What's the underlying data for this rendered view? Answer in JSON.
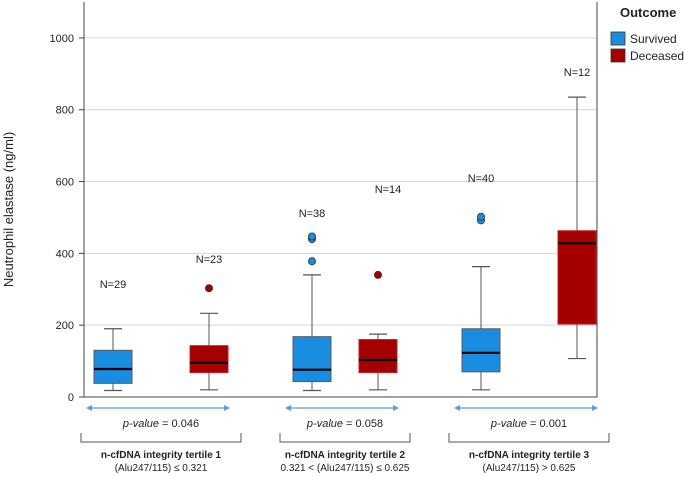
{
  "chart_data": {
    "type": "boxplot",
    "ylabel": "Neutrophil elastase (ng/ml)",
    "ylim": [
      0,
      1100
    ],
    "yticks": [
      0,
      200,
      400,
      600,
      800,
      1000
    ],
    "grid": true,
    "legend": {
      "title": "Outcome",
      "position": "top-right",
      "entries": [
        {
          "name": "Survived",
          "color": "#1a8de0"
        },
        {
          "name": "Deceased",
          "color": "#a50000"
        }
      ]
    },
    "groups": [
      {
        "label": "n-cfDNA integrity tertile 1",
        "sublabel": "(Alu247/115) ≤ 0.321",
        "p_prefix": "p-value",
        "p_suffix": " = 0.046",
        "boxes": [
          {
            "series": "Survived",
            "n_label": "N=29",
            "min": 18,
            "q1": 38,
            "median": 78,
            "q3": 130,
            "max": 190,
            "outliers": []
          },
          {
            "series": "Deceased",
            "n_label": "N=23",
            "min": 20,
            "q1": 68,
            "median": 95,
            "q3": 143,
            "max": 233,
            "outliers": [
              303
            ]
          }
        ]
      },
      {
        "label": "n-cfDNA integrity tertile 2",
        "sublabel": "0.321 < (Alu247/115) ≤ 0.625",
        "p_prefix": "p-value",
        "p_suffix": " = 0.058",
        "boxes": [
          {
            "series": "Survived",
            "n_label": "N=38",
            "min": 18,
            "q1": 43,
            "median": 76,
            "q3": 168,
            "max": 340,
            "outliers": [
              378,
              440,
              447
            ]
          },
          {
            "series": "Deceased",
            "n_label": "N=14",
            "min": 20,
            "q1": 68,
            "median": 103,
            "q3": 160,
            "max": 175,
            "outliers": [
              340
            ]
          }
        ]
      },
      {
        "label": "n-cfDNA integrity tertile 3",
        "sublabel": "(Alu247/115) > 0.625",
        "p_prefix": "p-value",
        "p_suffix": " = 0.001",
        "boxes": [
          {
            "series": "Survived",
            "n_label": "N=40",
            "min": 20,
            "q1": 70,
            "median": 123,
            "q3": 190,
            "max": 363,
            "outliers": [
              492,
              502
            ]
          },
          {
            "series": "Deceased",
            "n_label": "N=12",
            "min": 107,
            "q1": 203,
            "median": 428,
            "q3": 463,
            "max": 835,
            "outliers": []
          }
        ]
      }
    ]
  }
}
